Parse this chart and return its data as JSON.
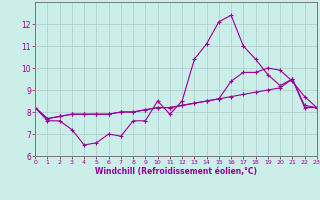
{
  "xlabel": "Windchill (Refroidissement éolien,°C)",
  "background_color": "#cceee8",
  "line_color": "#990099",
  "grid_color": "#aacccc",
  "x_values": [
    0,
    1,
    2,
    3,
    4,
    5,
    6,
    7,
    8,
    9,
    10,
    11,
    12,
    13,
    14,
    15,
    16,
    17,
    18,
    19,
    20,
    21,
    22,
    23
  ],
  "series1": [
    8.2,
    7.6,
    7.6,
    7.2,
    6.5,
    6.6,
    7.0,
    6.9,
    7.6,
    7.6,
    8.5,
    7.9,
    8.5,
    10.4,
    11.1,
    12.1,
    12.4,
    11.0,
    10.4,
    9.7,
    9.2,
    9.5,
    8.2,
    8.2
  ],
  "series2": [
    8.2,
    7.7,
    7.8,
    7.9,
    7.9,
    7.9,
    7.9,
    8.0,
    8.0,
    8.1,
    8.2,
    8.2,
    8.3,
    8.4,
    8.5,
    8.6,
    8.7,
    8.8,
    8.9,
    9.0,
    9.1,
    9.5,
    8.3,
    8.2
  ],
  "series3": [
    8.2,
    7.7,
    7.8,
    7.9,
    7.9,
    7.9,
    7.9,
    8.0,
    8.0,
    8.1,
    8.2,
    8.2,
    8.3,
    8.4,
    8.5,
    8.6,
    9.4,
    9.8,
    9.8,
    10.0,
    9.9,
    9.4,
    8.7,
    8.2
  ],
  "ylim": [
    6,
    13
  ],
  "xlim": [
    0,
    23
  ],
  "yticks": [
    6,
    7,
    8,
    9,
    10,
    11,
    12
  ],
  "xticks": [
    0,
    1,
    2,
    3,
    4,
    5,
    6,
    7,
    8,
    9,
    10,
    11,
    12,
    13,
    14,
    15,
    16,
    17,
    18,
    19,
    20,
    21,
    22,
    23
  ]
}
